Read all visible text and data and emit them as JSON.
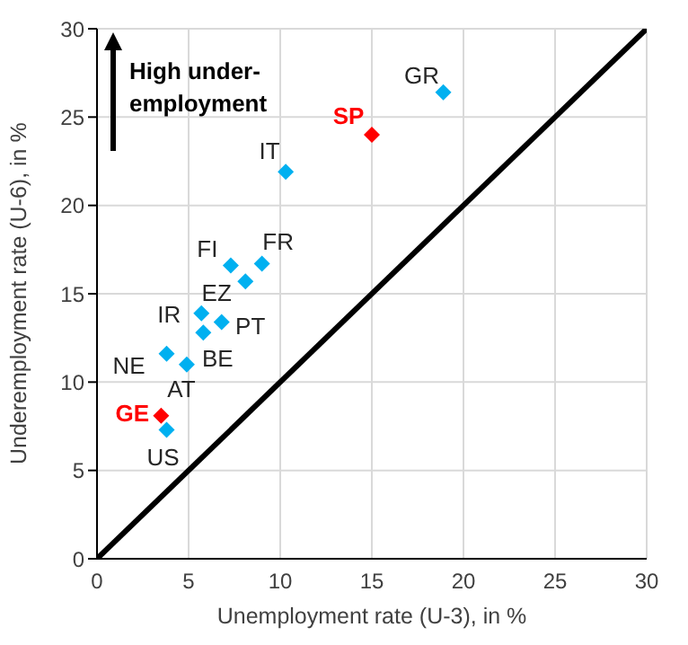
{
  "chart_data": {
    "type": "scatter",
    "xlabel": "Unemployment rate (U-3), in %",
    "ylabel": "Underemployment rate (U-6), in %",
    "x": [
      18.9,
      10.3,
      7.3,
      9.0,
      8.1,
      5.7,
      6.8,
      5.8,
      3.8,
      4.9,
      3.8
    ],
    "series": [
      {
        "color": "#00b0f0",
        "values": [
          26.4,
          21.9,
          16.6,
          16.7,
          15.7,
          13.9,
          13.4,
          12.8,
          11.6,
          11.0,
          7.3
        ]
      },
      {
        "color": "#ff0000",
        "x": [
          15.0,
          3.5
        ],
        "values": [
          24.0,
          8.1
        ]
      },
      {
        "type": "line",
        "color": "#000000",
        "x": [
          0,
          30
        ],
        "values": [
          0,
          30
        ],
        "marker": "none"
      }
    ],
    "marker": "diamond",
    "xlim": [
      0,
      30
    ],
    "ylim": [
      0,
      30
    ],
    "xticks": [
      0,
      5,
      10,
      15,
      20,
      25,
      30
    ],
    "yticks": [
      0,
      5,
      10,
      15,
      20,
      25,
      30
    ],
    "grid": true,
    "legend": false,
    "annotations": [
      "High under-employment",
      {
        "text": "GR",
        "x": 18.9,
        "y": 26.4
      },
      {
        "text": "SP",
        "x": 15.0,
        "y": 24.0
      },
      {
        "text": "IT",
        "x": 10.3,
        "y": 21.9
      },
      {
        "text": "FI",
        "x": 7.3,
        "y": 16.6
      },
      {
        "text": "FR",
        "x": 9.0,
        "y": 16.7
      },
      {
        "text": "EZ",
        "x": 8.1,
        "y": 15.7
      },
      {
        "text": "IR",
        "x": 5.7,
        "y": 13.9
      },
      {
        "text": "PT",
        "x": 6.8,
        "y": 13.4
      },
      {
        "text": "BE",
        "x": 5.8,
        "y": 12.8
      },
      {
        "text": "NE",
        "x": 3.8,
        "y": 11.6
      },
      {
        "text": "AT",
        "x": 4.9,
        "y": 11.0
      },
      {
        "text": "GE",
        "x": 3.5,
        "y": 8.1
      },
      {
        "text": "US",
        "x": 3.8,
        "y": 7.3
      }
    ]
  }
}
